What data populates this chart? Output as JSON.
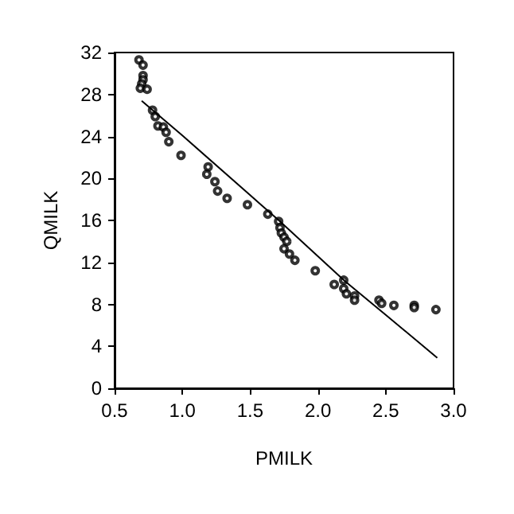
{
  "chart_data": {
    "type": "scatter",
    "xlabel": "PMILK",
    "ylabel": "QMILK",
    "xlim": [
      0.5,
      3.0
    ],
    "ylim": [
      0,
      32
    ],
    "xticks": [
      {
        "value": 0.5,
        "label": "0.5"
      },
      {
        "value": 1,
        "label": "1.0"
      },
      {
        "value": 1.5,
        "label": "1.5"
      },
      {
        "value": 2,
        "label": "2.0"
      },
      {
        "value": 2.5,
        "label": "2.5"
      },
      {
        "value": 3,
        "label": "3.0"
      }
    ],
    "yticks": [
      0,
      4,
      8,
      12,
      16,
      20,
      24,
      28,
      32
    ],
    "grid": false,
    "series": [
      {
        "marker": "circle",
        "color": "#000000",
        "x": [
          0.68,
          0.71,
          0.71,
          0.71,
          0.7,
          0.69,
          0.74,
          0.78,
          0.8,
          0.82,
          0.86,
          0.88,
          0.9,
          0.99,
          1.19,
          1.18,
          1.24,
          1.26,
          1.33,
          1.48,
          1.63,
          1.71,
          1.72,
          1.73,
          1.75,
          1.77,
          1.75,
          1.79,
          1.83,
          1.98,
          2.12,
          2.19,
          2.19,
          2.21,
          2.27,
          2.27,
          2.45,
          2.47,
          2.56,
          2.71,
          2.71,
          2.87
        ],
        "values": [
          31.3,
          30.8,
          29.8,
          29.4,
          29.0,
          28.6,
          28.5,
          26.5,
          25.9,
          25.0,
          24.9,
          24.4,
          23.5,
          22.2,
          21.1,
          20.4,
          19.7,
          18.8,
          18.1,
          17.5,
          16.6,
          15.9,
          15.3,
          14.8,
          14.4,
          14.0,
          13.3,
          12.8,
          12.2,
          11.2,
          9.9,
          10.3,
          9.5,
          9.0,
          8.8,
          8.4,
          8.4,
          8.1,
          7.9,
          7.9,
          7.7,
          7.5
        ]
      },
      {
        "type": "line",
        "marker": "none",
        "color": "#000000",
        "x": [
          0.7,
          1.0,
          1.5,
          1.72,
          2.2,
          2.5,
          2.88
        ],
        "values": [
          27.4,
          24.1,
          18.4,
          15.9,
          10.2,
          7.0,
          2.9
        ]
      }
    ]
  }
}
